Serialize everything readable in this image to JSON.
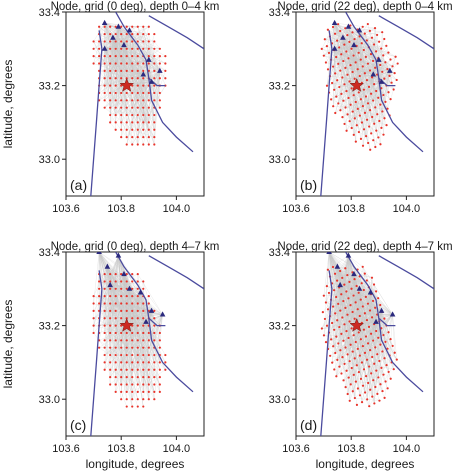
{
  "chart_data": [
    {
      "type": "scatter",
      "panel_label": "(a)",
      "title": "Node, grid (0 deg), depth 0–4 km",
      "xlabel": "",
      "ylabel": "latitude, degrees",
      "xlim": [
        103.6,
        104.1
      ],
      "ylim": [
        32.9,
        33.4
      ],
      "xticks": [
        "103.6",
        "103.8",
        "104.0"
      ],
      "yticks": [
        "33.0",
        "33.2",
        "33.4"
      ],
      "grid": false,
      "grid_rotation_deg": 0,
      "grid_extent": {
        "lon": [
          103.69,
          103.97
        ],
        "lat": [
          33.02,
          33.37
        ]
      },
      "node_clip": [
        [
          103.71,
          33.37
        ],
        [
          103.9,
          33.37
        ],
        [
          103.98,
          33.26
        ],
        [
          103.95,
          33.16
        ],
        [
          103.92,
          33.04
        ],
        [
          103.85,
          33.02
        ],
        [
          103.79,
          33.06
        ],
        [
          103.72,
          33.15
        ],
        [
          103.69,
          33.3
        ]
      ],
      "epicenter": {
        "lon": 103.82,
        "lat": 33.2
      },
      "stations": [
        [
          103.74,
          33.37
        ],
        [
          103.79,
          33.36
        ],
        [
          103.83,
          33.35
        ],
        [
          103.77,
          33.33
        ],
        [
          103.81,
          33.31
        ],
        [
          103.74,
          33.3
        ],
        [
          103.9,
          33.27
        ],
        [
          103.94,
          33.24
        ],
        [
          103.91,
          33.21
        ],
        [
          103.88,
          33.23
        ]
      ],
      "colors": {
        "node": "#e8332a",
        "station": "#2b2a7e",
        "fault": "#4b4b9e",
        "epicenter": "#cc2a22",
        "ray": "#c8c8c8"
      }
    },
    {
      "type": "scatter",
      "panel_label": "(b)",
      "title": "Node, grid (22 deg), depth 0–4 km",
      "xlabel": "",
      "ylabel": "",
      "xlim": [
        103.6,
        104.1
      ],
      "ylim": [
        32.9,
        33.4
      ],
      "xticks": [
        "103.6",
        "103.8",
        "104.0"
      ],
      "yticks": [
        "33.0",
        "33.2",
        "33.4"
      ],
      "grid": false,
      "grid_rotation_deg": 22,
      "grid_extent": {
        "lon": [
          103.69,
          103.97
        ],
        "lat": [
          33.02,
          33.37
        ]
      },
      "node_clip": [
        [
          103.71,
          33.37
        ],
        [
          103.9,
          33.37
        ],
        [
          103.98,
          33.26
        ],
        [
          103.95,
          33.16
        ],
        [
          103.92,
          33.04
        ],
        [
          103.85,
          33.02
        ],
        [
          103.79,
          33.06
        ],
        [
          103.72,
          33.15
        ],
        [
          103.69,
          33.3
        ]
      ],
      "epicenter": {
        "lon": 103.82,
        "lat": 33.2
      },
      "stations": [
        [
          103.74,
          33.37
        ],
        [
          103.79,
          33.36
        ],
        [
          103.83,
          33.35
        ],
        [
          103.77,
          33.33
        ],
        [
          103.81,
          33.31
        ],
        [
          103.74,
          33.3
        ],
        [
          103.9,
          33.27
        ],
        [
          103.94,
          33.24
        ],
        [
          103.91,
          33.21
        ],
        [
          103.88,
          33.23
        ]
      ],
      "colors": {
        "node": "#e8332a",
        "station": "#2b2a7e",
        "fault": "#4b4b9e",
        "epicenter": "#cc2a22",
        "ray": "#c8c8c8"
      }
    },
    {
      "type": "scatter",
      "panel_label": "(c)",
      "title": "Node, grid (0 deg), depth 4–7 km",
      "xlabel": "longitude, degrees",
      "ylabel": "latitude, degrees",
      "xlim": [
        103.6,
        104.1
      ],
      "ylim": [
        32.9,
        33.4
      ],
      "xticks": [
        "103.6",
        "103.8",
        "104.0"
      ],
      "yticks": [
        "33.0",
        "33.2",
        "33.4"
      ],
      "grid": false,
      "grid_rotation_deg": 0,
      "grid_extent": {
        "lon": [
          103.69,
          103.97
        ],
        "lat": [
          32.98,
          33.36
        ]
      },
      "node_clip": [
        [
          103.71,
          33.36
        ],
        [
          103.86,
          33.36
        ],
        [
          103.93,
          33.24
        ],
        [
          103.97,
          33.1
        ],
        [
          103.93,
          32.99
        ],
        [
          103.82,
          32.96
        ],
        [
          103.75,
          33.05
        ],
        [
          103.69,
          33.2
        ]
      ],
      "epicenter": {
        "lon": 103.82,
        "lat": 33.2
      },
      "stations": [
        [
          103.72,
          33.4
        ],
        [
          103.79,
          33.39
        ],
        [
          103.75,
          33.36
        ],
        [
          103.81,
          33.34
        ],
        [
          103.76,
          33.31
        ],
        [
          103.83,
          33.3
        ],
        [
          103.87,
          33.29
        ],
        [
          103.91,
          33.24
        ],
        [
          103.89,
          33.21
        ],
        [
          103.95,
          33.23
        ]
      ],
      "colors": {
        "node": "#e8332a",
        "station": "#2b2a7e",
        "fault": "#4b4b9e",
        "epicenter": "#cc2a22",
        "ray": "#c8c8c8"
      }
    },
    {
      "type": "scatter",
      "panel_label": "(d)",
      "title": "Node, grid (22 deg), depth 4–7 km",
      "xlabel": "longitude, degrees",
      "ylabel": "",
      "xlim": [
        103.6,
        104.1
      ],
      "ylim": [
        32.9,
        33.4
      ],
      "xticks": [
        "103.6",
        "103.8",
        "104.0"
      ],
      "yticks": [
        "33.0",
        "33.2",
        "33.4"
      ],
      "grid": false,
      "grid_rotation_deg": 22,
      "grid_extent": {
        "lon": [
          103.69,
          103.97
        ],
        "lat": [
          32.98,
          33.36
        ]
      },
      "node_clip": [
        [
          103.71,
          33.36
        ],
        [
          103.86,
          33.36
        ],
        [
          103.93,
          33.24
        ],
        [
          103.97,
          33.1
        ],
        [
          103.93,
          32.99
        ],
        [
          103.82,
          32.96
        ],
        [
          103.75,
          33.05
        ],
        [
          103.69,
          33.2
        ]
      ],
      "epicenter": {
        "lon": 103.82,
        "lat": 33.2
      },
      "stations": [
        [
          103.72,
          33.4
        ],
        [
          103.79,
          33.39
        ],
        [
          103.75,
          33.36
        ],
        [
          103.81,
          33.34
        ],
        [
          103.76,
          33.31
        ],
        [
          103.83,
          33.3
        ],
        [
          103.87,
          33.29
        ],
        [
          103.91,
          33.24
        ],
        [
          103.89,
          33.21
        ],
        [
          103.95,
          33.23
        ]
      ],
      "colors": {
        "node": "#e8332a",
        "station": "#2b2a7e",
        "fault": "#4b4b9e",
        "epicenter": "#cc2a22",
        "ray": "#c8c8c8"
      }
    }
  ],
  "faults": [
    [
      [
        103.72,
        33.35
      ],
      [
        103.73,
        33.3
      ],
      [
        103.72,
        33.2
      ],
      [
        103.71,
        33.1
      ],
      [
        103.7,
        33.0
      ],
      [
        103.69,
        32.9
      ]
    ],
    [
      [
        103.78,
        33.4
      ],
      [
        103.81,
        33.36
      ],
      [
        103.86,
        33.31
      ],
      [
        103.89,
        33.27
      ],
      [
        103.9,
        33.22
      ],
      [
        103.91,
        33.16
      ],
      [
        103.95,
        33.1
      ],
      [
        104.0,
        33.06
      ],
      [
        104.06,
        33.02
      ]
    ],
    [
      [
        103.9,
        33.39
      ],
      [
        103.97,
        33.36
      ],
      [
        104.04,
        33.33
      ],
      [
        104.1,
        33.3
      ]
    ],
    [
      [
        103.9,
        33.22
      ],
      [
        103.93,
        33.2
      ],
      [
        103.96,
        33.2
      ]
    ]
  ]
}
